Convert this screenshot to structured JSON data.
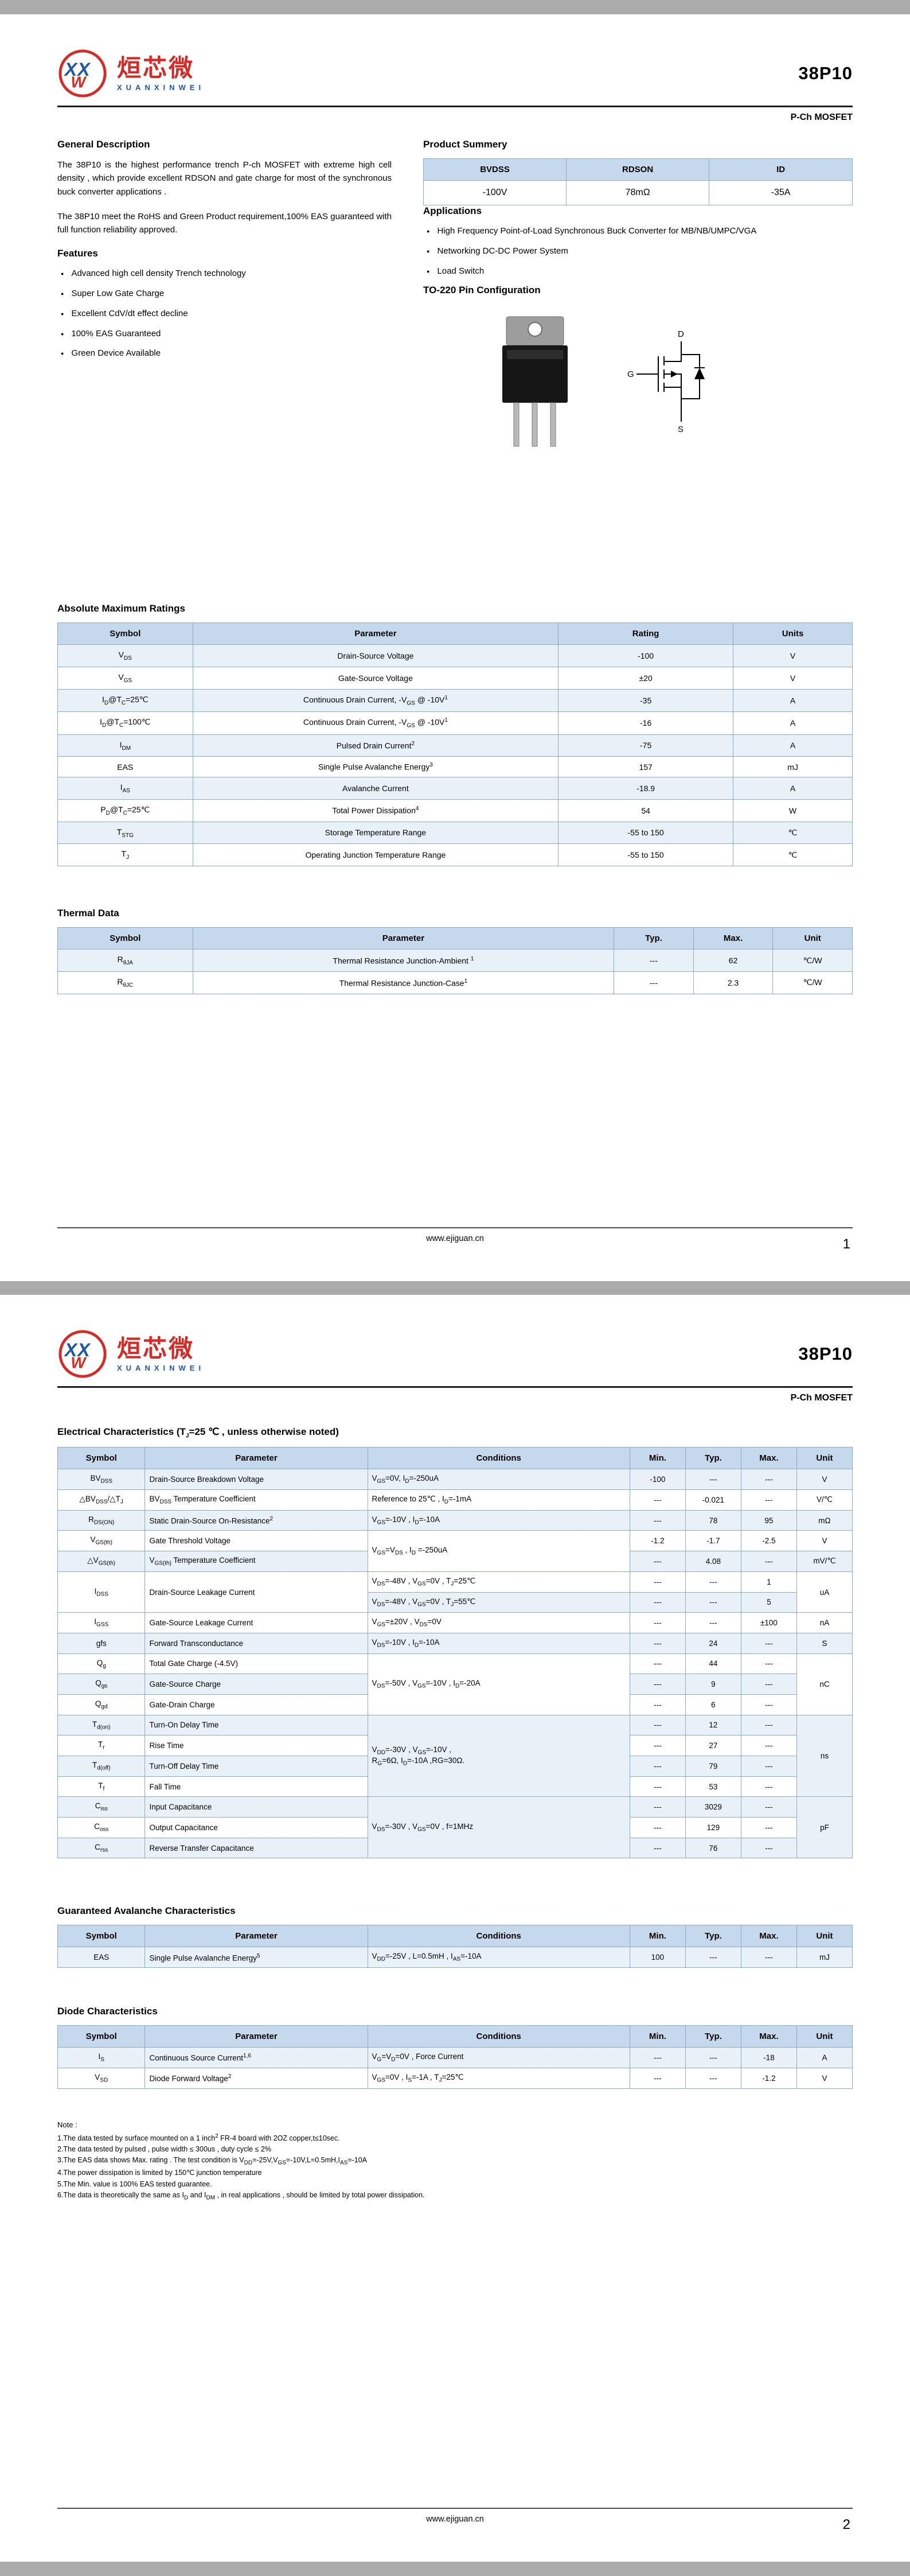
{
  "brand": {
    "logo_cn": "烜芯微",
    "logo_en": "XUANXINWEI",
    "logo_monogram": "XXW",
    "part_number": "38P10",
    "subtitle": "P-Ch MOSFET",
    "colors": {
      "accent_red": "#d42b26",
      "accent_blue": "#2056a8",
      "table_header_bg": "#c6d9ec",
      "table_row_alt": "#e9f1f8",
      "table_border": "#8fa9c2"
    }
  },
  "footer": {
    "url": "www.ejiguan.cn"
  },
  "page1": {
    "page_number": "1",
    "general_description": {
      "title": "General Description",
      "paragraphs": [
        "The  38P10  is the highest performance trench P-ch MOSFET with extreme high cell density , which provide excellent RDSON and gate charge for most of the synchronous buck converter applications .",
        "The  38P10  meet the RoHS and Green Product requirement,100% EAS guaranteed with full function reliability approved."
      ]
    },
    "features": {
      "title": "Features",
      "items": [
        "Advanced high cell density Trench technology",
        "Super Low Gate Charge",
        "Excellent CdV/dt effect decline",
        "100% EAS Guaranteed",
        "Green Device Available"
      ]
    },
    "product_summary": {
      "title": "Product Summery",
      "headers": [
        "BVDSS",
        "RDSON",
        "ID"
      ],
      "rows": [
        [
          "-100V",
          "78mΩ",
          "-35A"
        ]
      ]
    },
    "applications": {
      "title": "Applications",
      "items": [
        "High Frequency Point-of-Load Synchronous Buck Converter for MB/NB/UMPC/VGA",
        "Networking DC-DC Power System",
        "Load Switch"
      ]
    },
    "pin_config": {
      "title": "TO-220 Pin Configuration",
      "pins": [
        "D",
        "G",
        "S"
      ]
    },
    "abs_max": {
      "title": "Absolute Maximum Ratings",
      "headers": [
        "Symbol",
        "Parameter",
        "Rating",
        "Units"
      ],
      "rows": [
        [
          "V<sub>DS</sub>",
          "Drain-Source Voltage",
          "-100",
          "V"
        ],
        [
          "V<sub>GS</sub>",
          "Gate-Source Voltage",
          "±20",
          "V"
        ],
        [
          "I<sub>D</sub>@T<sub>C</sub>=25℃",
          "Continuous Drain Current, -V<sub>GS</sub> @ -10V<sup>1</sup>",
          "-35",
          "A"
        ],
        [
          "I<sub>D</sub>@T<sub>C</sub>=100℃",
          "Continuous Drain Current, -V<sub>GS</sub> @ -10V<sup>1</sup>",
          "-16",
          "A"
        ],
        [
          "I<sub>DM</sub>",
          "Pulsed Drain Current<sup>2</sup>",
          "-75",
          "A"
        ],
        [
          "EAS",
          "Single Pulse Avalanche Energy<sup>3</sup>",
          "157",
          "mJ"
        ],
        [
          "I<sub>AS</sub>",
          "Avalanche Current",
          "-18.9",
          "A"
        ],
        [
          "P<sub>D</sub>@T<sub>C</sub>=25℃",
          "Total Power Dissipation<sup>4</sup>",
          "54",
          "W"
        ],
        [
          "T<sub>STG</sub>",
          "Storage Temperature Range",
          "-55 to 150",
          "℃"
        ],
        [
          "T<sub>J</sub>",
          "Operating Junction Temperature Range",
          "-55 to 150",
          "℃"
        ]
      ]
    },
    "thermal": {
      "title": "Thermal Data",
      "headers": [
        "Symbol",
        "Parameter",
        "Typ.",
        "Max.",
        "Unit"
      ],
      "rows": [
        [
          "R<sub>θJA</sub>",
          "Thermal Resistance Junction-Ambient <sup>1</sup>",
          "---",
          "62",
          "℃/W"
        ],
        [
          "R<sub>θJC</sub>",
          "Thermal Resistance Junction-Case<sup>1</sup>",
          "---",
          "2.3",
          "℃/W"
        ]
      ]
    }
  },
  "page2": {
    "page_number": "2",
    "electrical": {
      "title_html": "Electrical Characteristics (T<sub>J</sub>=25 ℃ , unless otherwise noted)",
      "headers": [
        "Symbol",
        "Parameter",
        "Conditions",
        "Min.",
        "Typ.",
        "Max.",
        "Unit"
      ],
      "rows": [
        [
          "BV<sub>DSS</sub>",
          {
            "h": "Drain-Source Breakdown Voltage",
            "al": "l"
          },
          {
            "h": "V<sub>GS</sub>=0V, I<sub>D</sub>=-250uA",
            "al": "l"
          },
          "-100",
          "---",
          "---",
          "V"
        ],
        [
          "△BV<sub>DSS</sub>/△T<sub>J</sub>",
          {
            "h": "BV<sub>DSS</sub> Temperature Coefficient",
            "al": "l"
          },
          {
            "h": "Reference to 25℃ , I<sub>D</sub>=-1mA",
            "al": "l"
          },
          "---",
          "-0.021",
          "---",
          "V/℃"
        ],
        [
          "R<sub>DS(ON)</sub>",
          {
            "h": "Static Drain-Source On-Resistance<sup>2</sup>",
            "al": "l"
          },
          {
            "h": "V<sub>GS</sub>=-10V , I<sub>D</sub>=-10A",
            "al": "l"
          },
          "---",
          "78",
          "95",
          "mΩ"
        ],
        [
          "V<sub>GS(th)</sub>",
          {
            "h": "Gate Threshold Voltage",
            "al": "l"
          },
          {
            "h": "V<sub>GS</sub>=V<sub>DS</sub> , I<sub>D</sub> =-250uA",
            "al": "l",
            "rs": 2
          },
          "-1.2",
          "-1.7",
          "-2.5",
          "V"
        ],
        [
          "△V<sub>GS(th)</sub>",
          {
            "h": "V<sub>GS(th)</sub> Temperature Coefficient",
            "al": "l"
          },
          "---",
          "4.08",
          "---",
          "mV/℃"
        ],
        [
          {
            "h": "I<sub>DSS</sub>",
            "rs": 2
          },
          {
            "h": "Drain-Source Leakage Current",
            "al": "l",
            "rs": 2
          },
          {
            "h": "V<sub>DS</sub>=-48V , V<sub>GS</sub>=0V , T<sub>J</sub>=25℃",
            "al": "l"
          },
          "---",
          "---",
          "1",
          {
            "h": "uA",
            "rs": 2
          }
        ],
        [
          {
            "h": "V<sub>DS</sub>=-48V , V<sub>GS</sub>=0V , T<sub>J</sub>=55℃",
            "al": "l"
          },
          "---",
          "---",
          "5"
        ],
        [
          "I<sub>GSS</sub>",
          {
            "h": "Gate-Source Leakage Current",
            "al": "l"
          },
          {
            "h": "V<sub>GS</sub>=±20V , V<sub>DS</sub>=0V",
            "al": "l"
          },
          "---",
          "---",
          "±100",
          "nA"
        ],
        [
          "gfs",
          {
            "h": "Forward Transconductance",
            "al": "l"
          },
          {
            "h": "V<sub>DS</sub>=-10V , I<sub>D</sub>=-10A",
            "al": "l"
          },
          "---",
          "24",
          "---",
          "S"
        ],
        [
          "Q<sub>g</sub>",
          {
            "h": "Total Gate Charge (-4.5V)",
            "al": "l"
          },
          {
            "h": "V<sub>DS</sub>=-50V , V<sub>GS</sub>=-10V , I<sub>D</sub>=-20A",
            "al": "l",
            "rs": 3
          },
          "---",
          "44",
          "---",
          {
            "h": "nC",
            "rs": 3
          }
        ],
        [
          "Q<sub>gs</sub>",
          {
            "h": "Gate-Source Charge",
            "al": "l"
          },
          "---",
          "9",
          "---"
        ],
        [
          "Q<sub>gd</sub>",
          {
            "h": "Gate-Drain Charge",
            "al": "l"
          },
          "---",
          "6",
          "---"
        ],
        [
          "T<sub>d(on)</sub>",
          {
            "h": "Turn-On Delay Time",
            "al": "l"
          },
          {
            "h": "V<sub>DD</sub>=-30V , V<sub>GS</sub>=-10V ,<br>R<sub>G</sub>=6Ω, I<sub>D</sub>=-10A ,RG=30Ω.",
            "al": "l",
            "rs": 4
          },
          "---",
          "12",
          "---",
          {
            "h": "ns",
            "rs": 4
          }
        ],
        [
          "T<sub>r</sub>",
          {
            "h": "Rise Time",
            "al": "l"
          },
          "---",
          "27",
          "---"
        ],
        [
          "T<sub>d(off)</sub>",
          {
            "h": "Turn-Off Delay Time",
            "al": "l"
          },
          "---",
          "79",
          "---"
        ],
        [
          "T<sub>f</sub>",
          {
            "h": "Fall Time",
            "al": "l"
          },
          "---",
          "53",
          "---"
        ],
        [
          "C<sub>iss</sub>",
          {
            "h": "Input Capacitance",
            "al": "l"
          },
          {
            "h": "V<sub>DS</sub>=-30V , V<sub>GS</sub>=0V , f=1MHz",
            "al": "l",
            "rs": 3
          },
          "---",
          "3029",
          "---",
          {
            "h": "pF",
            "rs": 3
          }
        ],
        [
          "C<sub>oss</sub>",
          {
            "h": "Output Capacitance",
            "al": "l"
          },
          "---",
          "129",
          "---"
        ],
        [
          "C<sub>rss</sub>",
          {
            "h": "Reverse Transfer Capacitance",
            "al": "l"
          },
          "---",
          "76",
          "---"
        ]
      ]
    },
    "avalanche": {
      "title": "Guaranteed Avalanche Characteristics",
      "headers": [
        "Symbol",
        "Parameter",
        "Conditions",
        "Min.",
        "Typ.",
        "Max.",
        "Unit"
      ],
      "rows": [
        [
          "EAS",
          {
            "h": "Single Pulse Avalanche Energy<sup>5</sup>",
            "al": "l"
          },
          {
            "h": "V<sub>DD</sub>=-25V , L=0.5mH , I<sub>AS</sub>=-10A",
            "al": "l"
          },
          "100",
          "---",
          "---",
          "mJ"
        ]
      ]
    },
    "diode": {
      "title": "Diode Characteristics",
      "headers": [
        "Symbol",
        "Parameter",
        "Conditions",
        "Min.",
        "Typ.",
        "Max.",
        "Unit"
      ],
      "rows": [
        [
          "I<sub>S</sub>",
          {
            "h": "Continuous Source Current<sup>1,6</sup>",
            "al": "l"
          },
          {
            "h": "V<sub>G</sub>=V<sub>D</sub>=0V , Force Current",
            "al": "l"
          },
          "---",
          "---",
          "-18",
          "A"
        ],
        [
          "V<sub>SD</sub>",
          {
            "h": "Diode Forward Voltage<sup>2</sup>",
            "al": "l"
          },
          {
            "h": "V<sub>GS</sub>=0V , I<sub>S</sub>=-1A , T<sub>J</sub>=25℃",
            "al": "l"
          },
          "---",
          "---",
          "-1.2",
          "V"
        ]
      ]
    },
    "notes": {
      "title": "Note :",
      "items": [
        "1.The data tested by surface mounted on a 1 inch<sup>2</sup> FR-4 board with 2OZ copper,t≤10sec.",
        "2.The data tested by pulsed , pulse width ≤ 300us , duty cycle ≤ 2%",
        "3.The EAS data shows Max. rating . The test condition is V<sub>DD</sub>=-25V,V<sub>GS</sub>=-10V,L=0.5mH,I<sub>AS</sub>=-10A",
        "4.The power dissipation is limited by 150℃  junction temperature",
        "5.The Min. value is 100% EAS tested guarantee.",
        "6.The data is theoretically the same as I<sub>D</sub> and I<sub>DM</sub> , in real applications , should be limited by total power dissipation."
      ]
    }
  }
}
